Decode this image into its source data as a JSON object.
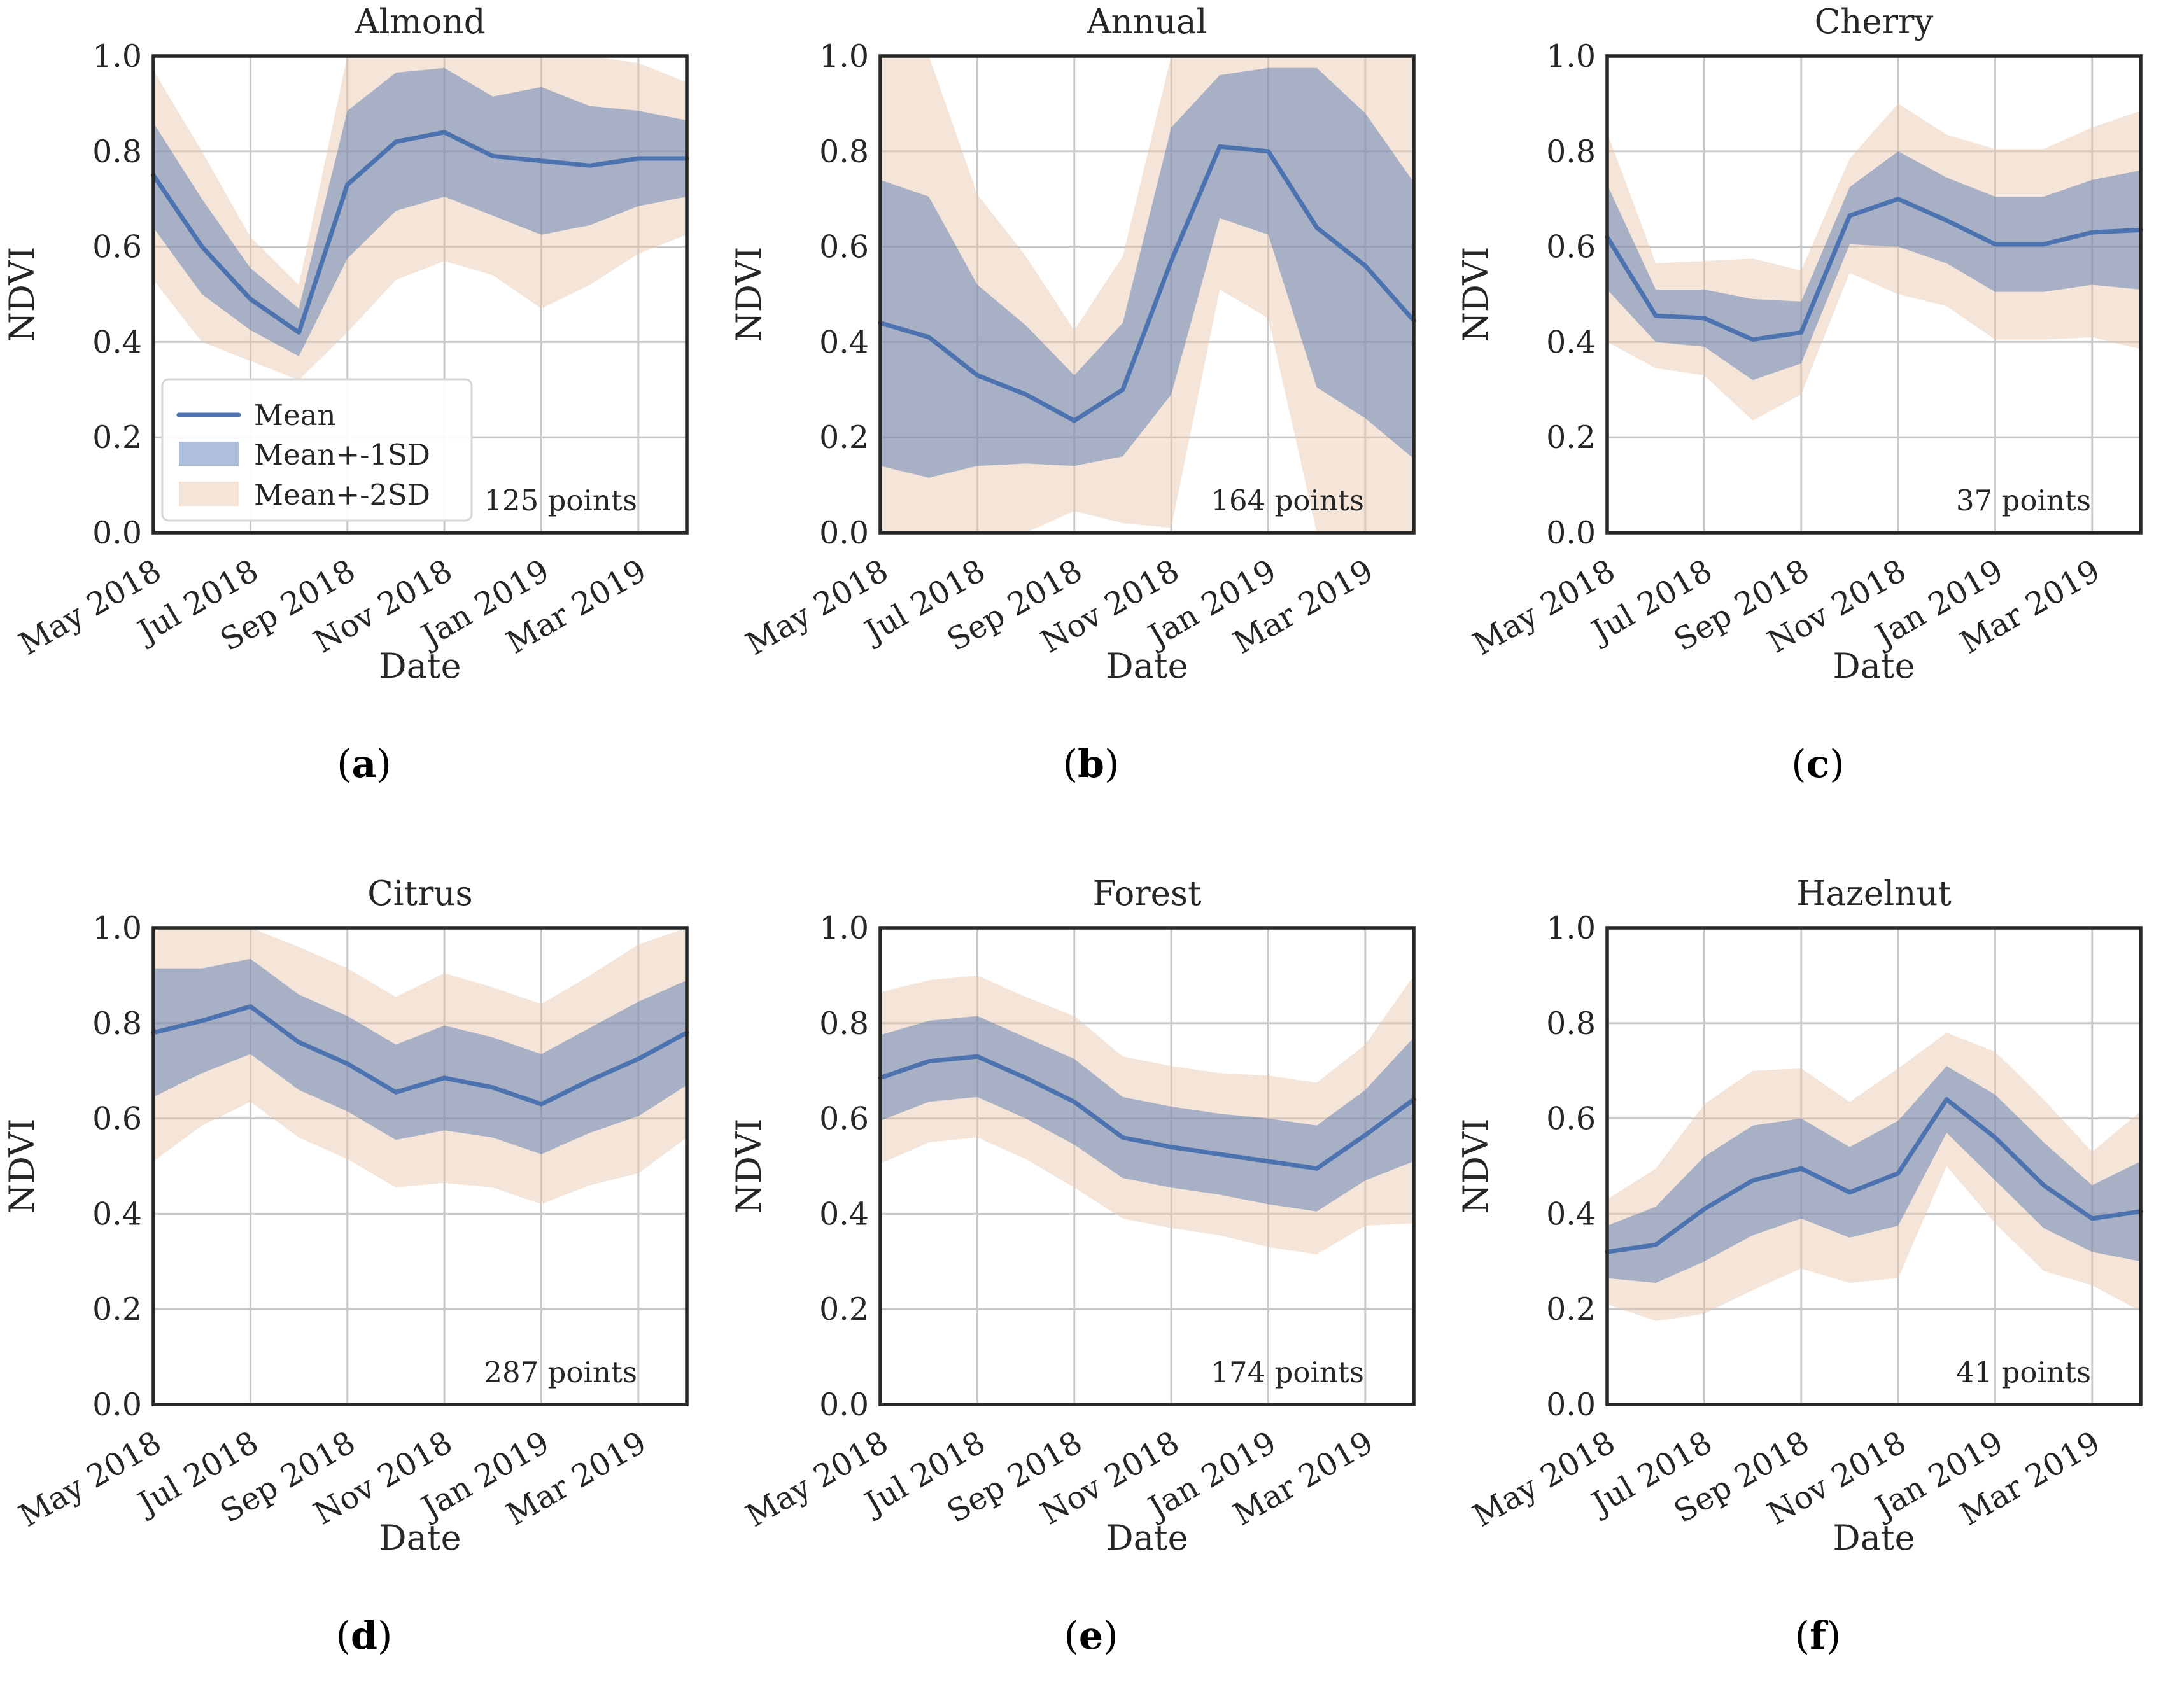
{
  "figure": {
    "background": "#ffffff",
    "ylabel": "NDVI",
    "xlabel": "Date",
    "caption_open": "(",
    "caption_close": ")",
    "months": [
      "May 2018",
      "Jun 2018",
      "Jul 2018",
      "Aug 2018",
      "Sep 2018",
      "Oct 2018",
      "Nov 2018",
      "Dec 2018",
      "Jan 2019",
      "Feb 2019",
      "Mar 2019",
      "Apr 2019"
    ],
    "xtick_labels": [
      "May 2018",
      "Jul 2018",
      "Sep 2018",
      "Nov 2018",
      "Jan 2019",
      "Mar 2019"
    ],
    "xtick_month_index": [
      0,
      2,
      4,
      6,
      8,
      10
    ],
    "ytick_labels": [
      "0.0",
      "0.2",
      "0.4",
      "0.6",
      "0.8",
      "1.0"
    ],
    "ytick_values": [
      0,
      0.2,
      0.4,
      0.6,
      0.8,
      1.0
    ],
    "ylim": [
      0,
      1
    ],
    "grid": true,
    "colors": {
      "mean_line": "#4c72b0",
      "band1_fill": "#4c72b0",
      "band1_opacity": 0.45,
      "band2_fill": "#e8c4a8",
      "band2_opacity": 0.45,
      "gridline": "#c8c8c8",
      "spine": "#262626",
      "text": "#262626",
      "legend_border": "#d6d6d6",
      "legend_bg": "#ffffff"
    },
    "legend": {
      "position": "lower-left",
      "items": [
        {
          "label": "Mean",
          "type": "line"
        },
        {
          "label": "Mean+-1SD",
          "type": "patch-blue"
        },
        {
          "label": "Mean+-2SD",
          "type": "patch-peach"
        }
      ]
    }
  },
  "chart_data": [
    {
      "type": "line",
      "panel": "a",
      "title": "Almond",
      "points_label": "125 points",
      "xlabel": "Date",
      "ylabel": "NDVI",
      "ylim": [
        0,
        1
      ],
      "x": [
        "May 2018",
        "Jun 2018",
        "Jul 2018",
        "Aug 2018",
        "Sep 2018",
        "Oct 2018",
        "Nov 2018",
        "Dec 2018",
        "Jan 2019",
        "Feb 2019",
        "Mar 2019",
        "Apr 2019"
      ],
      "series": [
        {
          "name": "Mean",
          "values": [
            0.75,
            0.6,
            0.49,
            0.42,
            0.73,
            0.82,
            0.84,
            0.79,
            0.78,
            0.77,
            0.785,
            0.785
          ]
        },
        {
          "name": "SD",
          "values": [
            0.11,
            0.1,
            0.065,
            0.05,
            0.155,
            0.145,
            0.135,
            0.125,
            0.155,
            0.125,
            0.1,
            0.08
          ]
        }
      ],
      "bands": [
        "Mean+-1SD",
        "Mean+-2SD"
      ],
      "show_legend": true
    },
    {
      "type": "line",
      "panel": "b",
      "title": "Annual",
      "points_label": "164 points",
      "xlabel": "Date",
      "ylabel": "NDVI",
      "ylim": [
        0,
        1
      ],
      "x": [
        "May 2018",
        "Jun 2018",
        "Jul 2018",
        "Aug 2018",
        "Sep 2018",
        "Oct 2018",
        "Nov 2018",
        "Dec 2018",
        "Jan 2019",
        "Feb 2019",
        "Mar 2019",
        "Apr 2019"
      ],
      "series": [
        {
          "name": "Mean",
          "values": [
            0.44,
            0.41,
            0.33,
            0.29,
            0.235,
            0.3,
            0.57,
            0.81,
            0.8,
            0.64,
            0.56,
            0.445
          ]
        },
        {
          "name": "SD",
          "values": [
            0.3,
            0.295,
            0.19,
            0.145,
            0.095,
            0.14,
            0.28,
            0.15,
            0.175,
            0.335,
            0.32,
            0.29
          ]
        }
      ],
      "bands": [
        "Mean+-1SD",
        "Mean+-2SD"
      ],
      "show_legend": false
    },
    {
      "type": "line",
      "panel": "c",
      "title": "Cherry",
      "points_label": "37 points",
      "xlabel": "Date",
      "ylabel": "NDVI",
      "ylim": [
        0,
        1
      ],
      "x": [
        "May 2018",
        "Jun 2018",
        "Jul 2018",
        "Aug 2018",
        "Sep 2018",
        "Oct 2018",
        "Nov 2018",
        "Dec 2018",
        "Jan 2019",
        "Feb 2019",
        "Mar 2019",
        "Apr 2019"
      ],
      "series": [
        {
          "name": "Mean",
          "values": [
            0.62,
            0.455,
            0.45,
            0.405,
            0.42,
            0.665,
            0.7,
            0.655,
            0.605,
            0.605,
            0.63,
            0.635
          ]
        },
        {
          "name": "SD",
          "values": [
            0.11,
            0.055,
            0.06,
            0.085,
            0.065,
            0.06,
            0.1,
            0.09,
            0.1,
            0.1,
            0.11,
            0.125
          ]
        }
      ],
      "bands": [
        "Mean+-1SD",
        "Mean+-2SD"
      ],
      "show_legend": false
    },
    {
      "type": "line",
      "panel": "d",
      "title": "Citrus",
      "points_label": "287 points",
      "xlabel": "Date",
      "ylabel": "NDVI",
      "ylim": [
        0,
        1
      ],
      "x": [
        "May 2018",
        "Jun 2018",
        "Jul 2018",
        "Aug 2018",
        "Sep 2018",
        "Oct 2018",
        "Nov 2018",
        "Dec 2018",
        "Jan 2019",
        "Feb 2019",
        "Mar 2019",
        "Apr 2019"
      ],
      "series": [
        {
          "name": "Mean",
          "values": [
            0.78,
            0.805,
            0.835,
            0.76,
            0.715,
            0.655,
            0.685,
            0.665,
            0.63,
            0.68,
            0.725,
            0.78
          ]
        },
        {
          "name": "SD",
          "values": [
            0.135,
            0.11,
            0.1,
            0.1,
            0.1,
            0.1,
            0.11,
            0.105,
            0.105,
            0.11,
            0.12,
            0.11
          ]
        }
      ],
      "bands": [
        "Mean+-1SD",
        "Mean+-2SD"
      ],
      "show_legend": false
    },
    {
      "type": "line",
      "panel": "e",
      "title": "Forest",
      "points_label": "174 points",
      "xlabel": "Date",
      "ylabel": "NDVI",
      "ylim": [
        0,
        1
      ],
      "x": [
        "May 2018",
        "Jun 2018",
        "Jul 2018",
        "Aug 2018",
        "Sep 2018",
        "Oct 2018",
        "Nov 2018",
        "Dec 2018",
        "Jan 2019",
        "Feb 2019",
        "Mar 2019",
        "Apr 2019"
      ],
      "series": [
        {
          "name": "Mean",
          "values": [
            0.685,
            0.72,
            0.73,
            0.685,
            0.635,
            0.56,
            0.54,
            0.525,
            0.51,
            0.495,
            0.565,
            0.64
          ]
        },
        {
          "name": "SD",
          "values": [
            0.09,
            0.085,
            0.085,
            0.085,
            0.09,
            0.085,
            0.085,
            0.085,
            0.09,
            0.09,
            0.095,
            0.13
          ]
        }
      ],
      "bands": [
        "Mean+-1SD",
        "Mean+-2SD"
      ],
      "show_legend": false
    },
    {
      "type": "line",
      "panel": "f",
      "title": "Hazelnut",
      "points_label": "41 points",
      "xlabel": "Date",
      "ylabel": "NDVI",
      "ylim": [
        0,
        1
      ],
      "x": [
        "May 2018",
        "Jun 2018",
        "Jul 2018",
        "Aug 2018",
        "Sep 2018",
        "Oct 2018",
        "Nov 2018",
        "Dec 2018",
        "Jan 2019",
        "Feb 2019",
        "Mar 2019",
        "Apr 2019"
      ],
      "series": [
        {
          "name": "Mean",
          "values": [
            0.32,
            0.335,
            0.41,
            0.47,
            0.495,
            0.445,
            0.485,
            0.64,
            0.56,
            0.46,
            0.39,
            0.405
          ]
        },
        {
          "name": "SD",
          "values": [
            0.055,
            0.08,
            0.11,
            0.115,
            0.105,
            0.095,
            0.11,
            0.07,
            0.09,
            0.09,
            0.07,
            0.105
          ]
        }
      ],
      "bands": [
        "Mean+-1SD",
        "Mean+-2SD"
      ],
      "show_legend": false
    }
  ],
  "captions": [
    "a",
    "b",
    "c",
    "d",
    "e",
    "f"
  ]
}
